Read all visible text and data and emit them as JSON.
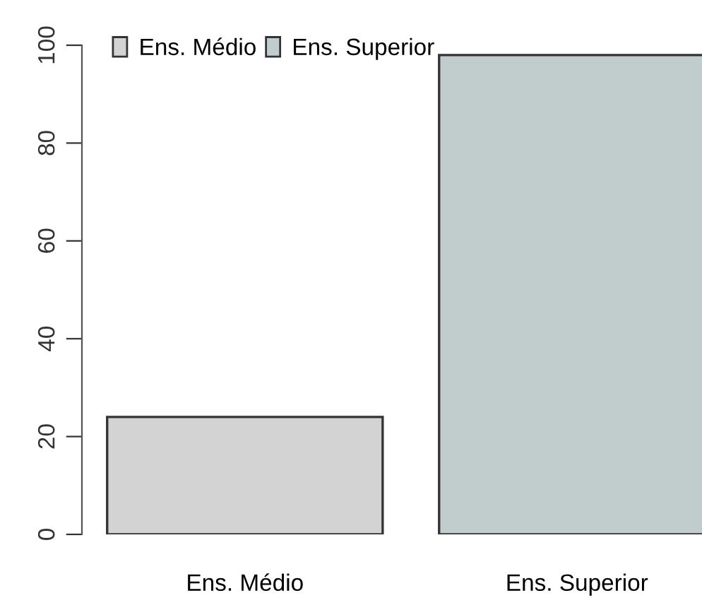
{
  "chart_data": {
    "type": "bar",
    "categories": [
      "Ens. Médio",
      "Ens. Superior"
    ],
    "series": [
      {
        "name": "Ens. Médio",
        "color": "#d3d3d3",
        "values": [
          24,
          null
        ]
      },
      {
        "name": "Ens. Superior",
        "color": "#c1cccc",
        "values": [
          null,
          98
        ]
      }
    ],
    "ylim": [
      0,
      100
    ],
    "yticks": [
      0,
      20,
      40,
      60,
      80,
      100
    ],
    "grid": false,
    "legend": "top left"
  }
}
